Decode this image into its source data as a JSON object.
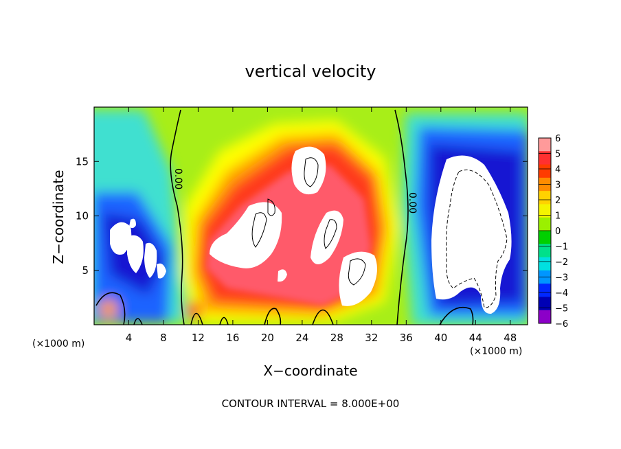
{
  "chart_data": {
    "type": "heatmap",
    "title": "vertical velocity",
    "xlabel": "X−coordinate",
    "ylabel": "Z−coordinate",
    "x_unit_left": "(×1000 m)",
    "x_unit_right": "(×1000 m)",
    "xlim": [
      0,
      50
    ],
    "ylim": [
      0,
      20
    ],
    "x_ticks": [
      4,
      8,
      12,
      16,
      20,
      24,
      28,
      32,
      36,
      40,
      44,
      48
    ],
    "y_ticks": [
      5,
      10,
      15
    ],
    "colorbar": {
      "labels": [
        "6",
        "5",
        "4",
        "3",
        "2",
        "1",
        "0",
        "−1",
        "−2",
        "−3",
        "−4",
        "−5",
        "−6"
      ],
      "colors": [
        "#ff9a9a",
        "#ff3030",
        "#ff3c00",
        "#ff8c00",
        "#ffd200",
        "#f4f400",
        "#9bf000",
        "#00d000",
        "#00e08a",
        "#00e0e0",
        "#0096ff",
        "#0028ff",
        "#0000b4",
        "#8c00c8"
      ]
    },
    "contour_label": "0.00",
    "footer": "CONTOUR INTERVAL = 8.000E+00",
    "color_scale": {
      "background": "#a8ee18",
      "positive": [
        "#ffff00",
        "#ffa000",
        "#ff3a1a",
        "#ff5a6a"
      ],
      "saturated_positive": "#ffffff",
      "negative": [
        "#40e0d0",
        "#1e64ff",
        "#1414d2",
        "#6a00b4"
      ],
      "saturated_negative": "#ffffff"
    }
  }
}
